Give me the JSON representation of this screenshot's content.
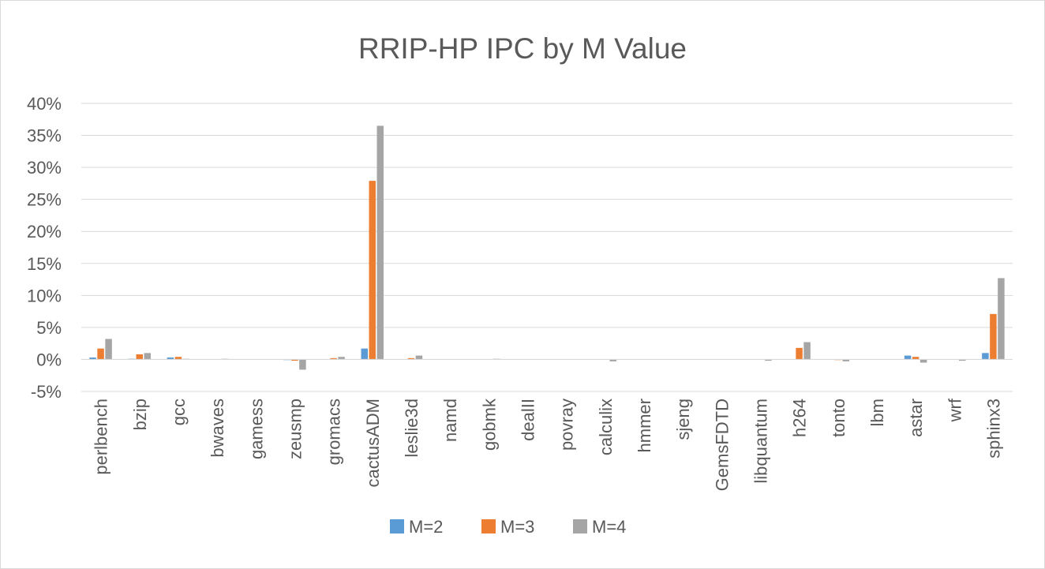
{
  "chart_data": {
    "type": "bar",
    "title": "RRIP-HP IPC by M Value",
    "xlabel": "",
    "ylabel": "",
    "ylim": [
      -0.05,
      0.4
    ],
    "yticks": [
      -0.05,
      0,
      0.05,
      0.1,
      0.15,
      0.2,
      0.25,
      0.3,
      0.35,
      0.4
    ],
    "ytick_labels": [
      "-5%",
      "0%",
      "5%",
      "10%",
      "15%",
      "20%",
      "25%",
      "30%",
      "35%",
      "40%"
    ],
    "grid": true,
    "legend_position": "bottom",
    "categories": [
      "perlbench",
      "bzip",
      "gcc",
      "bwaves",
      "gamess",
      "zeusmp",
      "gromacs",
      "cactusADM",
      "leslie3d",
      "namd",
      "gobmk",
      "dealII",
      "povray",
      "calculix",
      "hmmer",
      "sjeng",
      "GemsFDTD",
      "libquantum",
      "h264",
      "tonto",
      "lbm",
      "astar",
      "wrf",
      "sphinx3"
    ],
    "series": [
      {
        "name": "M=2",
        "color": "#5b9bd5",
        "values": [
          0.003,
          0.001,
          0.003,
          0.0,
          0.0,
          -0.001,
          0.0,
          0.017,
          0.0,
          0.0,
          0.0,
          0.0,
          0.0,
          0.0,
          0.0,
          0.0,
          0.0,
          0.0,
          0.0,
          0.0,
          0.0,
          0.006,
          0.0,
          0.01
        ]
      },
      {
        "name": "M=3",
        "color": "#ed7d31",
        "values": [
          0.017,
          0.008,
          0.004,
          0.0,
          0.0,
          -0.002,
          0.002,
          0.279,
          0.002,
          0.0,
          0.0,
          0.0,
          0.0,
          0.0,
          0.0,
          0.0,
          0.0,
          0.0,
          0.018,
          -0.001,
          0.0,
          0.004,
          0.0,
          0.071
        ]
      },
      {
        "name": "M=4",
        "color": "#a5a5a5",
        "values": [
          0.032,
          0.01,
          0.001,
          0.001,
          0.0,
          -0.016,
          0.004,
          0.365,
          0.006,
          0.0,
          0.001,
          0.0,
          0.0,
          -0.003,
          0.0,
          0.0,
          0.0,
          -0.002,
          0.027,
          -0.003,
          0.0,
          -0.005,
          -0.002,
          0.127
        ]
      }
    ]
  }
}
